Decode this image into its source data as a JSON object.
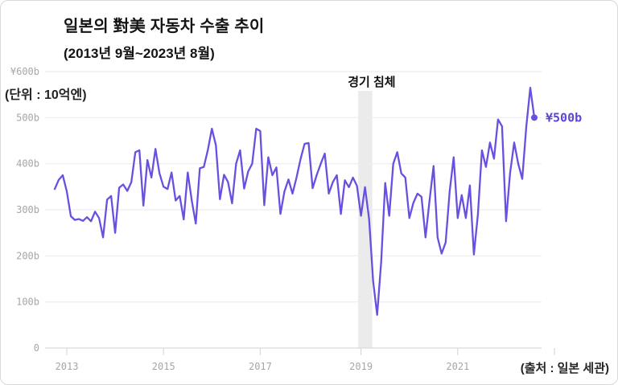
{
  "header": {
    "title": "일본의 對美 자동차 수출 추이",
    "subtitle": "(2013년 9월~2023년 8월)"
  },
  "chart_data": {
    "type": "line",
    "title": "일본의 對美 자동차 수출 추이",
    "subtitle": "(2013년 9월~2023년 8월)",
    "unit_label": "(단위 : 10억엔)",
    "source": "(출처 : 일본 세관)",
    "x_start": "2013-09",
    "x_end": "2023-08",
    "ylim": [
      0,
      600
    ],
    "grid": "horizontal",
    "y_ticks": [
      {
        "label": "¥600b",
        "value": 600
      },
      {
        "label": "500b",
        "value": 500
      },
      {
        "label": "400b",
        "value": 400
      },
      {
        "label": "300b",
        "value": 300
      },
      {
        "label": "200b",
        "value": 200
      },
      {
        "label": "100b",
        "value": 100
      },
      {
        "label": "0",
        "value": 0
      }
    ],
    "x_ticks": [
      {
        "label": "2013",
        "month": 3
      },
      {
        "label": "2015",
        "month": 27
      },
      {
        "label": "2017",
        "month": 51
      },
      {
        "label": "2019",
        "month": 76
      },
      {
        "label": "2021",
        "month": 100
      },
      {
        "label": "",
        "month": 124
      }
    ],
    "annotation": {
      "label": "경기 침체",
      "band_start_month": 75.3,
      "band_end_month": 78.8
    },
    "end_label": "¥500b",
    "end_value": 500,
    "values": [
      345,
      365,
      375,
      340,
      286,
      278,
      280,
      276,
      284,
      275,
      296,
      282,
      240,
      322,
      330,
      250,
      348,
      355,
      341,
      360,
      425,
      429,
      309,
      408,
      370,
      432,
      379,
      350,
      345,
      381,
      320,
      330,
      279,
      381,
      320,
      270,
      390,
      393,
      430,
      476,
      440,
      323,
      376,
      360,
      314,
      400,
      429,
      346,
      383,
      400,
      476,
      471,
      310,
      414,
      375,
      392,
      291,
      340,
      366,
      335,
      370,
      410,
      443,
      445,
      347,
      375,
      400,
      422,
      335,
      360,
      375,
      291,
      364,
      349,
      370,
      352,
      287,
      349,
      280,
      145,
      72,
      187,
      358,
      287,
      400,
      425,
      379,
      370,
      282,
      315,
      335,
      328,
      240,
      320,
      395,
      240,
      205,
      229,
      340,
      414,
      282,
      332,
      282,
      353,
      203,
      290,
      429,
      393,
      446,
      411,
      496,
      481,
      275,
      380,
      446,
      400,
      367,
      480,
      565,
      500
    ],
    "colors": {
      "line": "#6a4fe0",
      "grid": "#ededed",
      "axis": "#d9d9d9",
      "band": "#ebebeb",
      "tick_text": "#a6a6a6",
      "end_label_text": "#5b46d9",
      "text": "#141414"
    }
  }
}
